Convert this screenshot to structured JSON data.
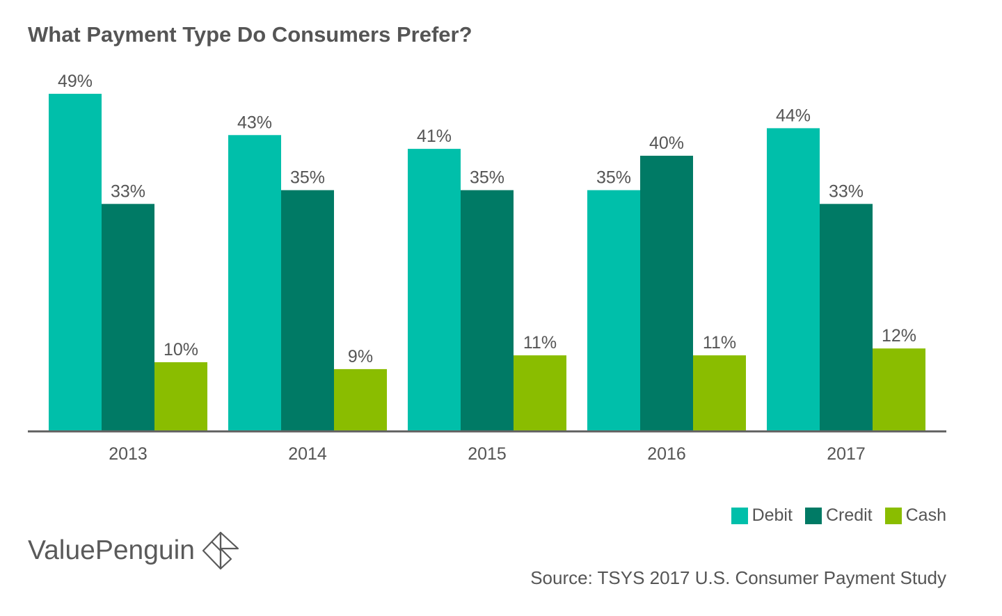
{
  "chart_data": {
    "type": "bar",
    "title": "What Payment Type Do Consumers Prefer?",
    "categories": [
      "2013",
      "2014",
      "2015",
      "2016",
      "2017"
    ],
    "series": [
      {
        "name": "Debit",
        "color": "#00BFAA",
        "values": [
          49,
          43,
          41,
          35,
          44
        ],
        "labels": [
          "49%",
          "43%",
          "41%",
          "35%",
          "44%"
        ]
      },
      {
        "name": "Credit",
        "color": "#007A65",
        "values": [
          33,
          35,
          35,
          40,
          33
        ],
        "labels": [
          "33%",
          "35%",
          "35%",
          "40%",
          "33%"
        ]
      },
      {
        "name": "Cash",
        "color": "#8ABD00",
        "values": [
          10,
          9,
          11,
          11,
          12
        ],
        "labels": [
          "10%",
          "9%",
          "11%",
          "11%",
          "12%"
        ]
      }
    ],
    "xlabel": "",
    "ylabel": "",
    "ylim": [
      0,
      50
    ],
    "grid": false,
    "legend_position": "bottom-right"
  },
  "source": "Source: TSYS 2017 U.S. Consumer Payment Study",
  "logo": {
    "text": "ValuePenguin"
  }
}
